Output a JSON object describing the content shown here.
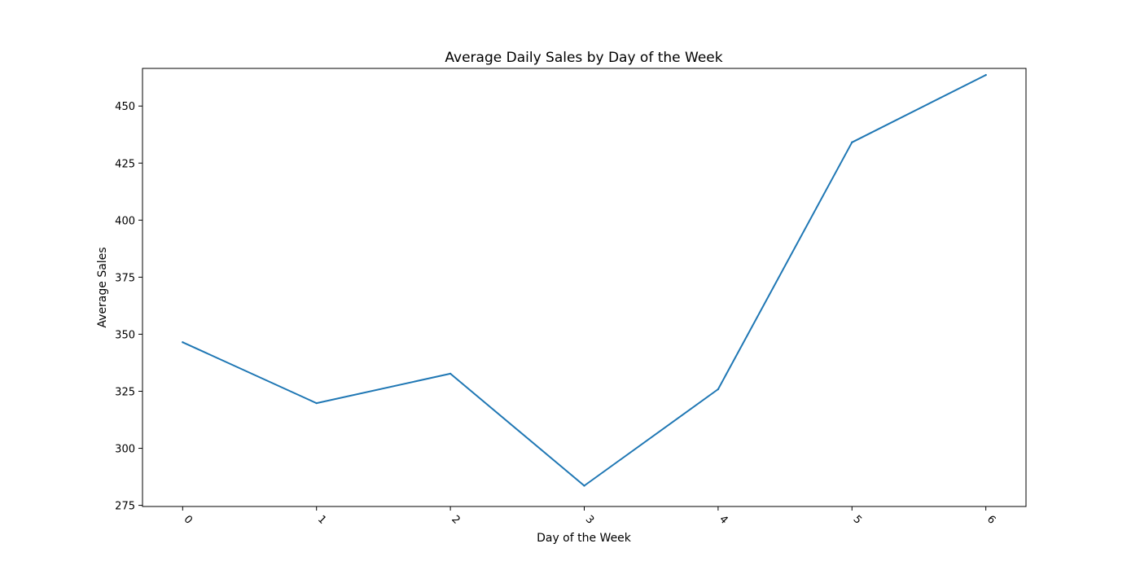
{
  "chart_data": {
    "type": "line",
    "title": "Average Daily Sales by Day of the Week",
    "xlabel": "Day of the Week",
    "ylabel": "Average Sales",
    "x": [
      0,
      1,
      2,
      3,
      4,
      5,
      6
    ],
    "x_tick_labels": [
      "0",
      "1",
      "2",
      "3",
      "4",
      "5",
      "6"
    ],
    "y_ticks": [
      275,
      300,
      325,
      350,
      375,
      400,
      425,
      450
    ],
    "y_tick_labels": [
      "275",
      "300",
      "325",
      "350",
      "375",
      "400",
      "425",
      "450"
    ],
    "xlim": [
      -0.3,
      6.3
    ],
    "ylim": [
      274.5,
      466.5
    ],
    "grid": false,
    "x_tick_rotation": "45 degrees",
    "series": [
      {
        "values": [
          346.5,
          319.8,
          332.7,
          283.6,
          325.9,
          434.1,
          463.6
        ],
        "color": "#1f77b4"
      }
    ]
  }
}
